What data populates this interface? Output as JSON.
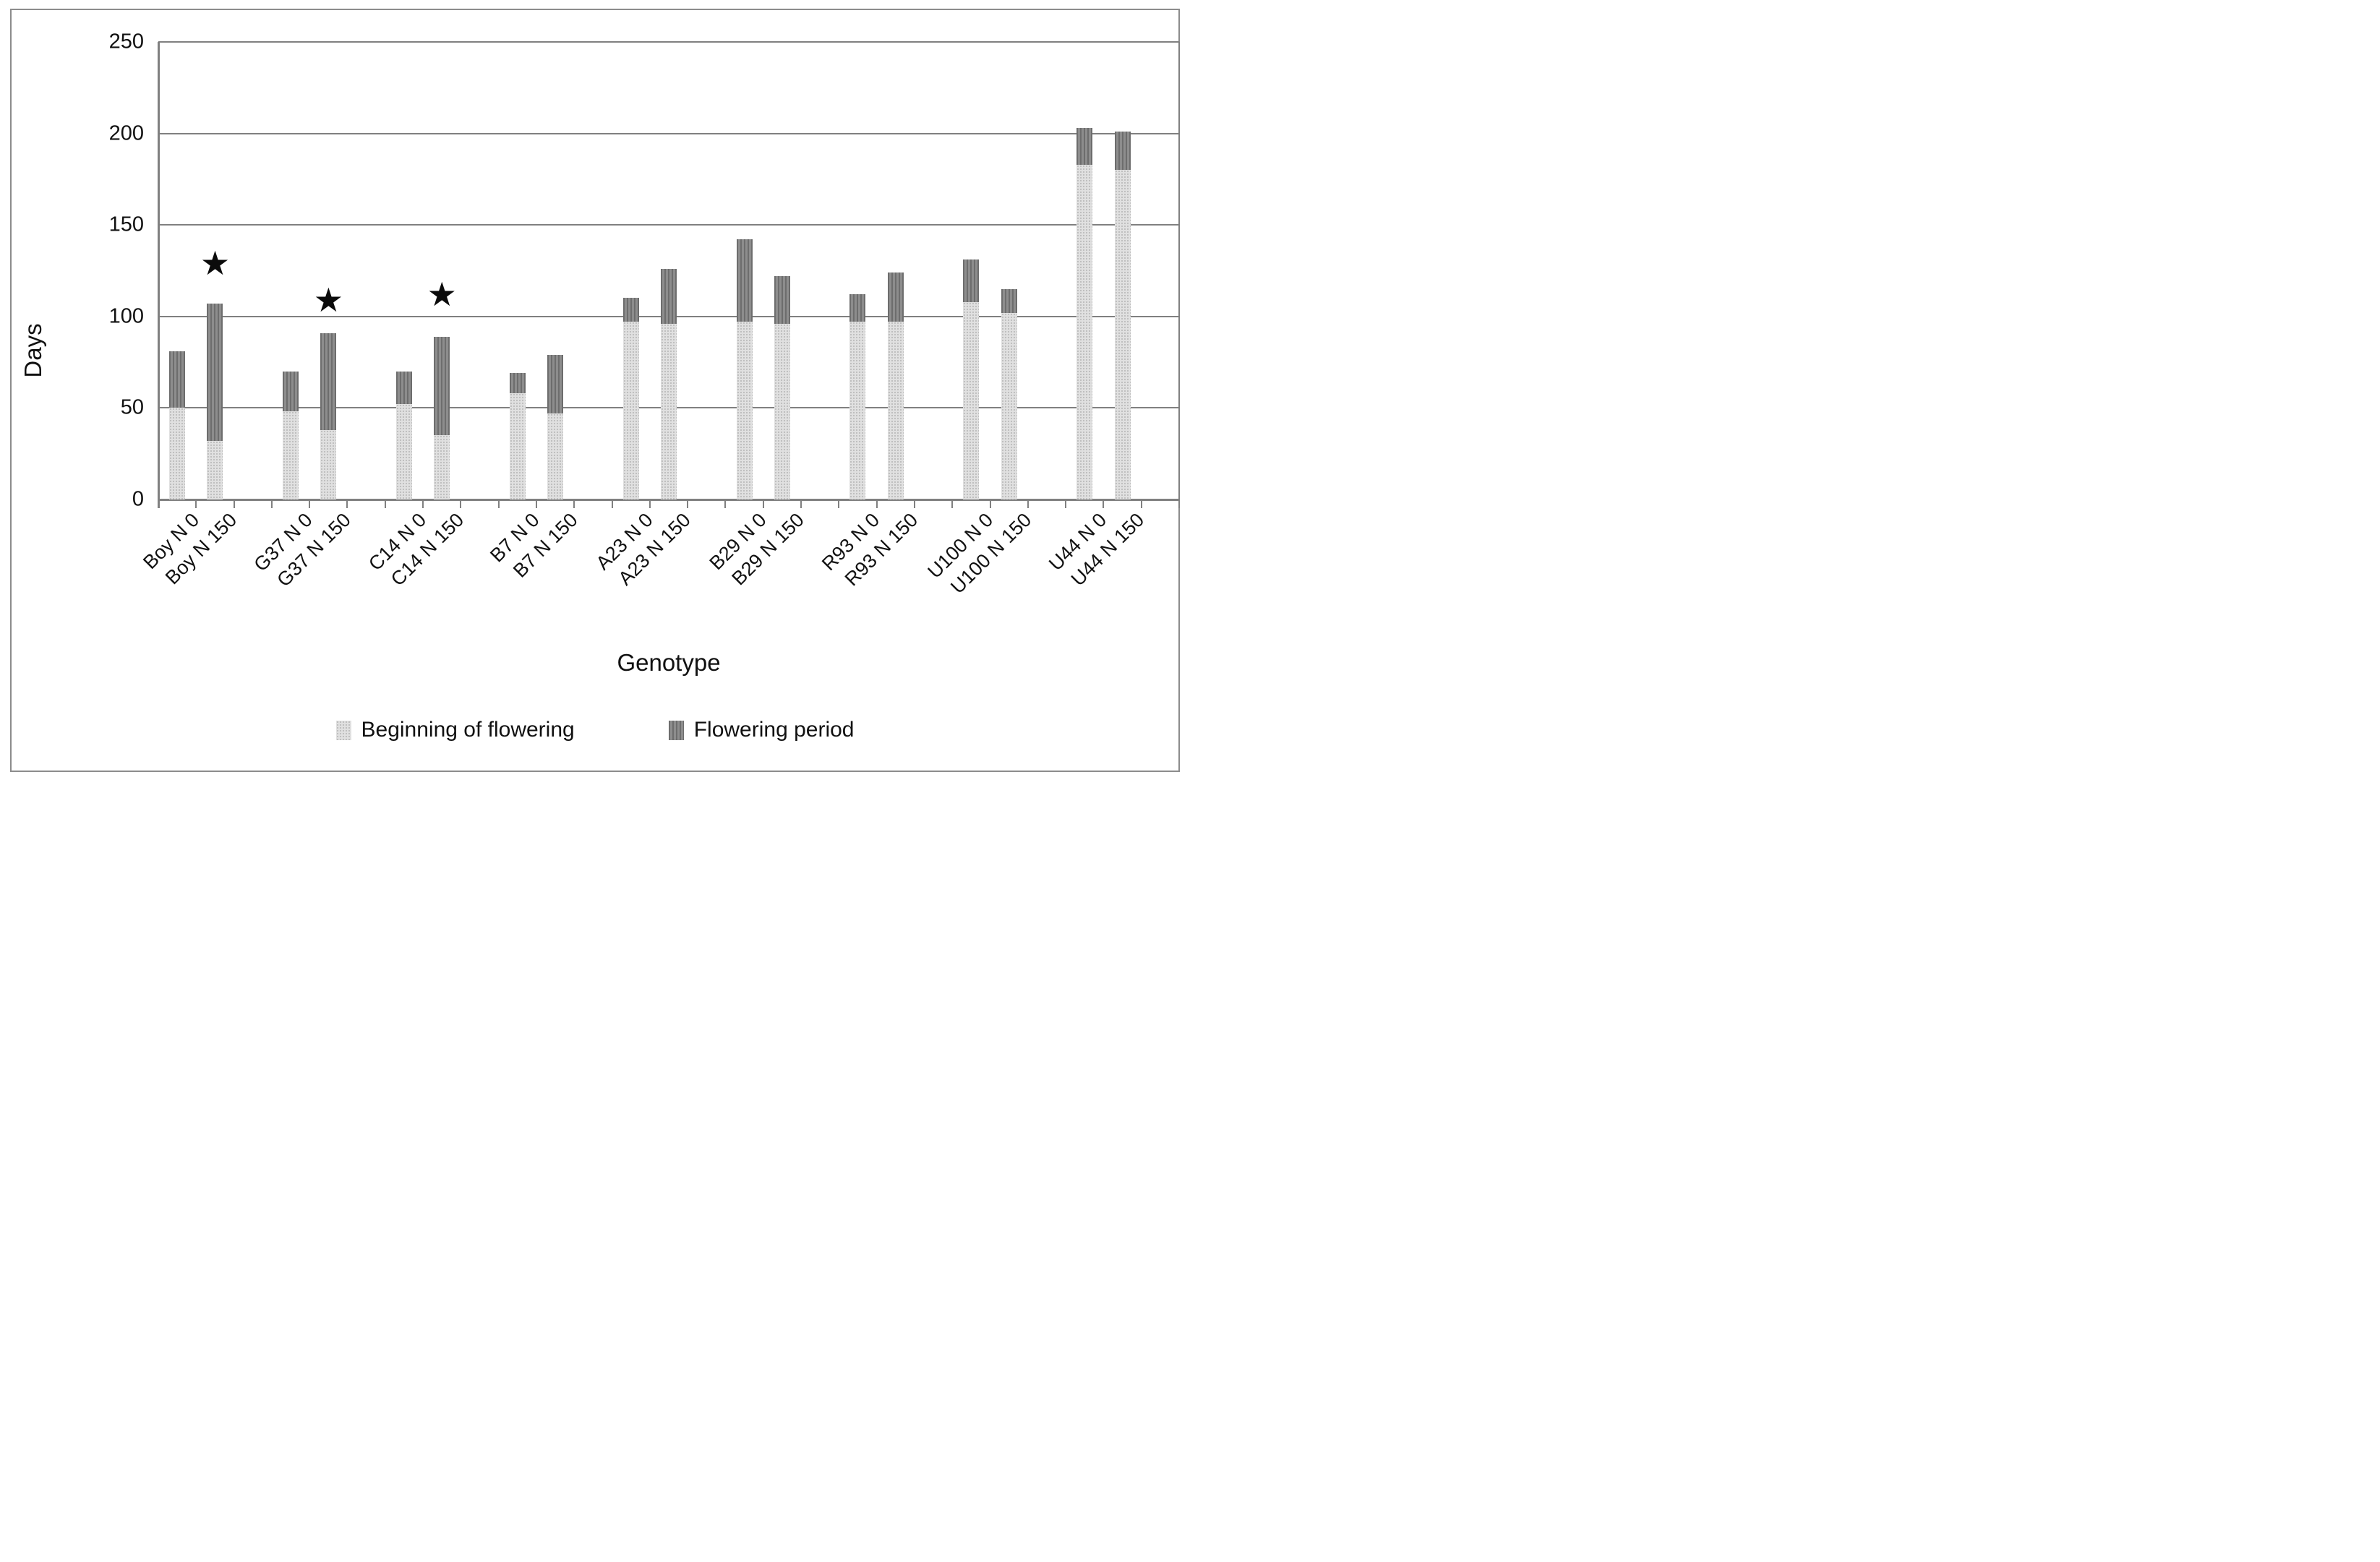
{
  "figure": {
    "y_axis_title": "Days",
    "x_axis_title": "Genotype",
    "legend": [
      {
        "label": "Beginning of flowering",
        "style": "light-dotted"
      },
      {
        "label": "Flowering period",
        "style": "dark-striped"
      }
    ],
    "colors": {
      "bar_light": "#e0e0e0",
      "bar_light_dot": "#bdbdbd",
      "bar_dark": "#8d8d8d",
      "bar_dark_stripe": "#6d6d6d",
      "gridline": "#808080",
      "text": "#111111",
      "star": "#0b0b0b",
      "outer_border": "#8c8c8c"
    }
  },
  "chart_data": {
    "type": "bar",
    "stacked": true,
    "title": "",
    "xlabel": "Genotype",
    "ylabel": "Days",
    "ylim": [
      0,
      250
    ],
    "y_ticks": [
      0,
      50,
      100,
      150,
      200,
      250
    ],
    "grid": true,
    "legend_position": "bottom",
    "categories": [
      "Boy N 0",
      "Boy N 150",
      "G37 N 0",
      "G37 N 150",
      "C14 N 0",
      "C14 N 150",
      "B7 N 0",
      "B7 N 150",
      "A23 N 0",
      "A23 N 150",
      "B29 N 0",
      "B29 N 150",
      "R93 N 0",
      "R93 N 150",
      "U100 N 0",
      "U100 N 150",
      "U44 N 0",
      "U44 N 150"
    ],
    "series": [
      {
        "name": "Beginning of flowering",
        "values": [
          50,
          32,
          48,
          38,
          52,
          35,
          58,
          47,
          97,
          96,
          97,
          96,
          97,
          97,
          108,
          102,
          183,
          180
        ]
      },
      {
        "name": "Flowering period",
        "values": [
          31,
          75,
          22,
          53,
          18,
          54,
          11,
          32,
          13,
          30,
          45,
          26,
          15,
          27,
          23,
          13,
          20,
          21
        ]
      }
    ],
    "stack_totals": [
      81,
      107,
      70,
      91,
      70,
      89,
      69,
      79,
      110,
      126,
      142,
      122,
      112,
      124,
      131,
      115,
      203,
      201
    ],
    "annotations": {
      "marker_glyph": "★",
      "stars": [
        {
          "category_index": 1,
          "category": "Boy N 150",
          "y_days": 129
        },
        {
          "category_index": 3,
          "category": "G37 N 150",
          "y_days": 109
        },
        {
          "category_index": 5,
          "category": "C14 N 150",
          "y_days": 112
        }
      ]
    }
  }
}
